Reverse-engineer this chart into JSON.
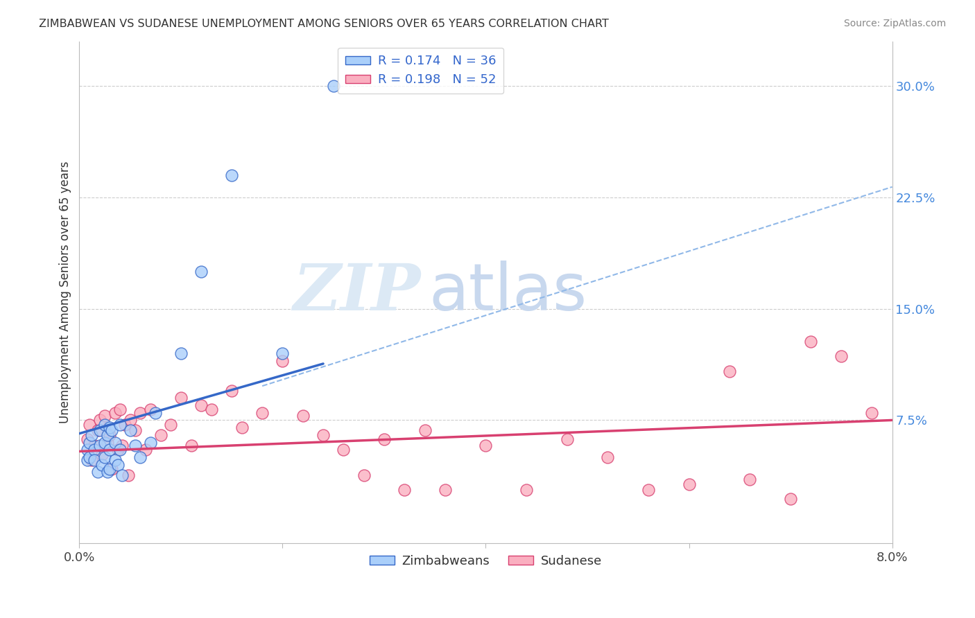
{
  "title": "ZIMBABWEAN VS SUDANESE UNEMPLOYMENT AMONG SENIORS OVER 65 YEARS CORRELATION CHART",
  "source": "Source: ZipAtlas.com",
  "ylabel": "Unemployment Among Seniors over 65 years",
  "y_ticks_right": [
    0.075,
    0.15,
    0.225,
    0.3
  ],
  "y_tick_labels_right": [
    "7.5%",
    "15.0%",
    "22.5%",
    "30.0%"
  ],
  "xlim": [
    0.0,
    0.08
  ],
  "ylim": [
    -0.008,
    0.33
  ],
  "legend_r1": "R = 0.174",
  "legend_n1": "N = 36",
  "legend_r2": "R = 0.198",
  "legend_n2": "N = 52",
  "legend_label1": "Zimbabweans",
  "legend_label2": "Sudanese",
  "zimbabwean_color": "#aacffa",
  "sudanese_color": "#faafc0",
  "zimbabwean_line_color": "#3568c8",
  "sudanese_line_color": "#d84070",
  "dashed_line_color": "#90b8e8",
  "background_color": "#ffffff",
  "watermark_zip": "ZIP",
  "watermark_atlas": "atlas",
  "watermark_color_zip": "#dce9f5",
  "watermark_color_atlas": "#c8d8ee",
  "zimbabweans_x": [
    0.0008,
    0.0008,
    0.001,
    0.001,
    0.0012,
    0.0015,
    0.0015,
    0.0018,
    0.002,
    0.002,
    0.0022,
    0.0025,
    0.0025,
    0.0025,
    0.0028,
    0.0028,
    0.003,
    0.003,
    0.003,
    0.0032,
    0.0035,
    0.0035,
    0.0038,
    0.004,
    0.004,
    0.0042,
    0.005,
    0.0055,
    0.006,
    0.007,
    0.0075,
    0.01,
    0.012,
    0.015,
    0.02,
    0.025
  ],
  "zimbabweans_y": [
    0.055,
    0.048,
    0.06,
    0.05,
    0.065,
    0.055,
    0.048,
    0.04,
    0.068,
    0.058,
    0.045,
    0.072,
    0.06,
    0.05,
    0.065,
    0.04,
    0.07,
    0.055,
    0.042,
    0.068,
    0.06,
    0.048,
    0.045,
    0.072,
    0.055,
    0.038,
    0.068,
    0.058,
    0.05,
    0.06,
    0.08,
    0.12,
    0.175,
    0.24,
    0.12,
    0.3
  ],
  "sudanese_x": [
    0.0008,
    0.001,
    0.0012,
    0.0015,
    0.0018,
    0.002,
    0.0022,
    0.0025,
    0.0028,
    0.003,
    0.0032,
    0.0035,
    0.0038,
    0.004,
    0.0042,
    0.0045,
    0.0048,
    0.005,
    0.0055,
    0.006,
    0.0065,
    0.007,
    0.008,
    0.009,
    0.01,
    0.011,
    0.012,
    0.013,
    0.015,
    0.016,
    0.018,
    0.02,
    0.022,
    0.024,
    0.026,
    0.028,
    0.03,
    0.032,
    0.034,
    0.036,
    0.04,
    0.044,
    0.048,
    0.052,
    0.056,
    0.06,
    0.064,
    0.066,
    0.07,
    0.072,
    0.075,
    0.078
  ],
  "sudanese_y": [
    0.062,
    0.072,
    0.048,
    0.058,
    0.068,
    0.075,
    0.052,
    0.078,
    0.06,
    0.065,
    0.042,
    0.08,
    0.055,
    0.082,
    0.058,
    0.072,
    0.038,
    0.075,
    0.068,
    0.08,
    0.055,
    0.082,
    0.065,
    0.072,
    0.09,
    0.058,
    0.085,
    0.082,
    0.095,
    0.07,
    0.08,
    0.115,
    0.078,
    0.065,
    0.055,
    0.038,
    0.062,
    0.028,
    0.068,
    0.028,
    0.058,
    0.028,
    0.062,
    0.05,
    0.028,
    0.032,
    0.108,
    0.035,
    0.022,
    0.128,
    0.118,
    0.08
  ],
  "blue_line_x0": 0.0,
  "blue_line_y0": 0.066,
  "blue_line_x1": 0.024,
  "blue_line_y1": 0.113,
  "pink_line_x0": 0.0,
  "pink_line_y0": 0.054,
  "pink_line_x1": 0.08,
  "pink_line_y1": 0.075,
  "dashed_line_x0": 0.018,
  "dashed_line_y0": 0.098,
  "dashed_line_x1": 0.08,
  "dashed_line_y1": 0.232
}
